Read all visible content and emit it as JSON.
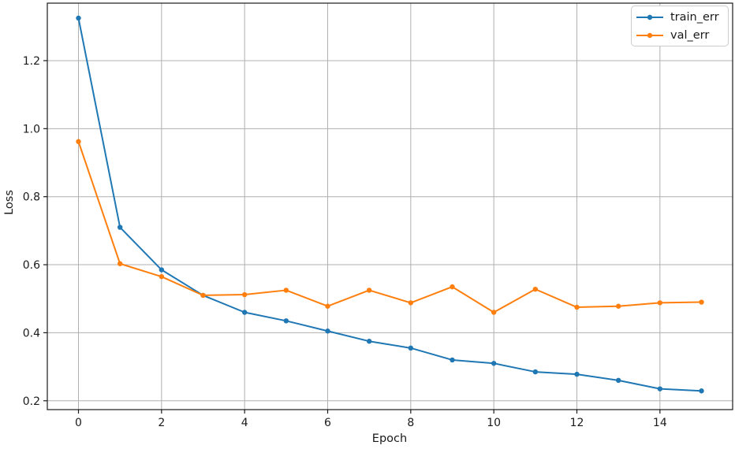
{
  "chart_data": {
    "type": "line",
    "x": [
      0,
      1,
      2,
      3,
      4,
      5,
      6,
      7,
      8,
      9,
      10,
      11,
      12,
      13,
      14,
      15
    ],
    "series": [
      {
        "name": "train_err",
        "color": "#1f77b4",
        "values": [
          1.325,
          0.71,
          0.585,
          0.51,
          0.46,
          0.435,
          0.405,
          0.375,
          0.355,
          0.32,
          0.31,
          0.285,
          0.278,
          0.26,
          0.235,
          0.229
        ]
      },
      {
        "name": "val_err",
        "color": "#ff7f0e",
        "values": [
          0.962,
          0.603,
          0.565,
          0.51,
          0.512,
          0.525,
          0.478,
          0.525,
          0.488,
          0.535,
          0.46,
          0.528,
          0.475,
          0.478,
          0.488,
          0.49
        ]
      }
    ],
    "title": "",
    "xlabel": "Epoch",
    "ylabel": "Loss",
    "xlim": [
      -0.75,
      15.75
    ],
    "ylim": [
      0.174,
      1.369
    ],
    "xticks": [
      0,
      2,
      4,
      6,
      8,
      10,
      12,
      14
    ],
    "yticks": [
      0.2,
      0.4,
      0.6,
      0.8,
      1.0,
      1.2
    ],
    "grid": true,
    "marker": "circle",
    "legend": {
      "position": "upper right",
      "entries": [
        "train_err",
        "val_err"
      ]
    },
    "style": {
      "grid_color": "#b0b0b0",
      "spine_color": "#1a1a1a",
      "text_color": "#1a1a1a",
      "background": "#ffffff",
      "legend_border": "#cccccc"
    }
  }
}
